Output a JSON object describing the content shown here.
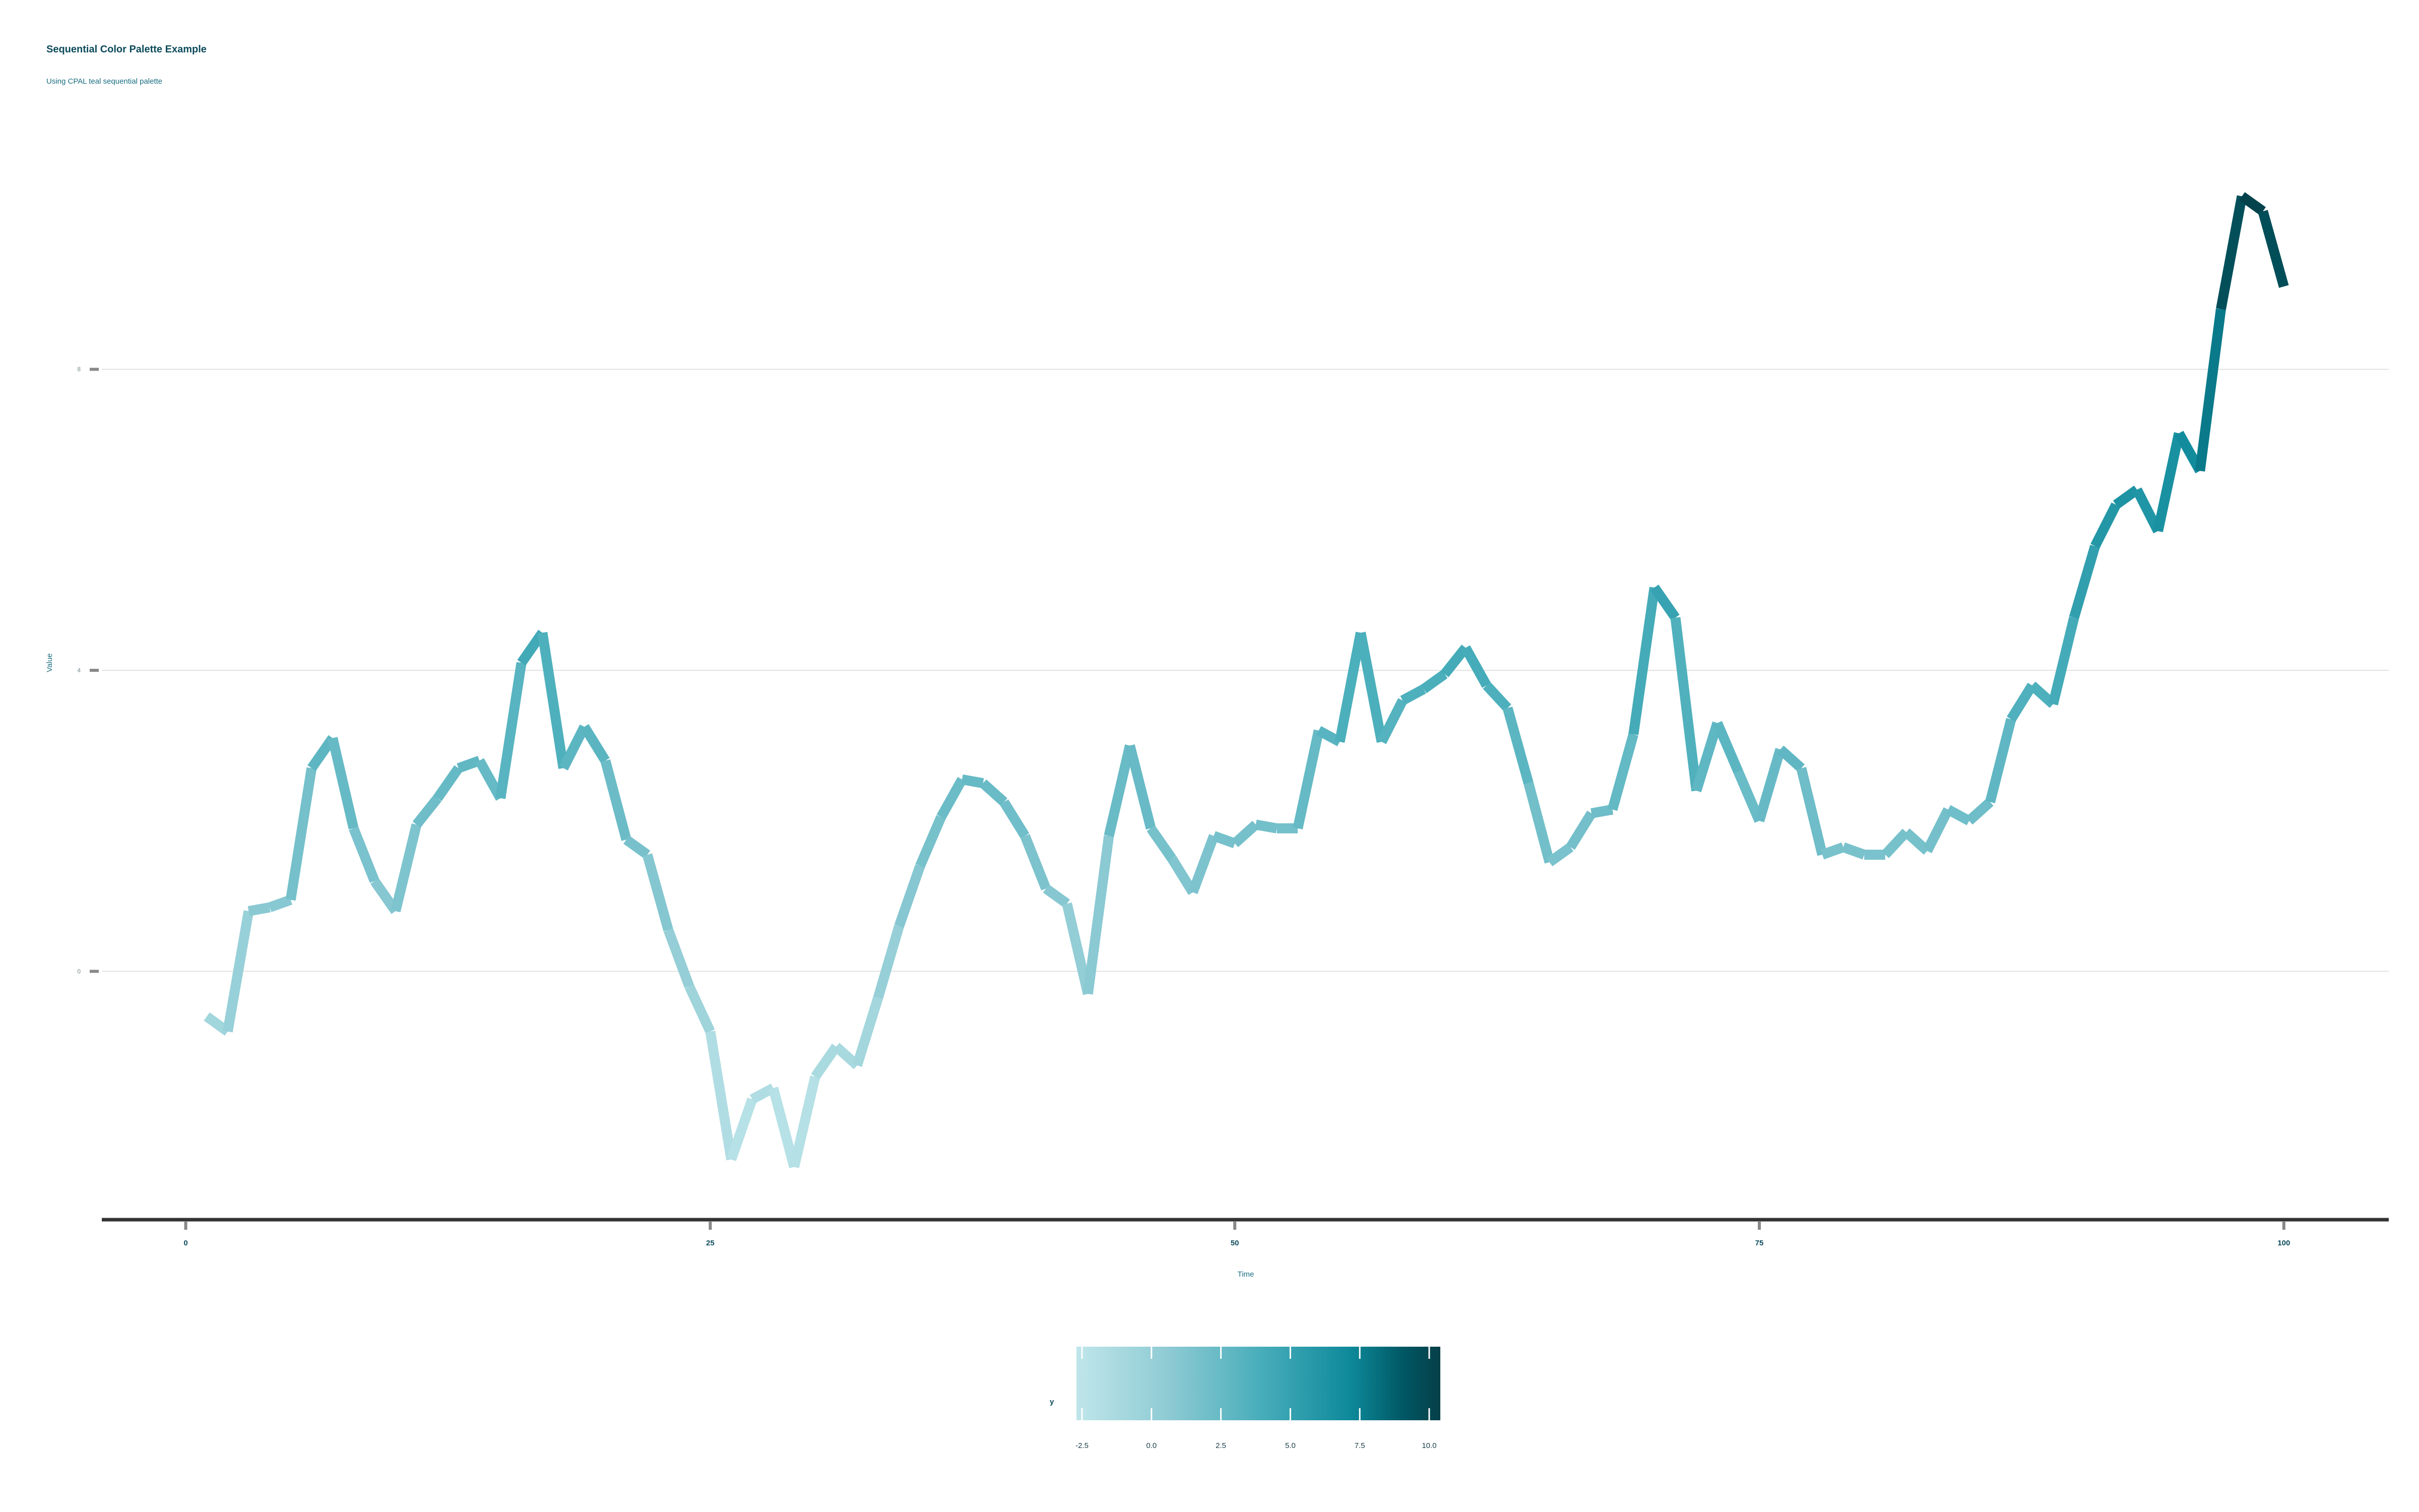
{
  "chart_data": {
    "type": "line",
    "title": "Sequential Color Palette Example",
    "subtitle": "Using CPAL teal sequential palette",
    "xlabel": "Time",
    "ylabel": "Value",
    "xlim": [
      -4,
      105
    ],
    "ylim": [
      -3.3,
      11.3
    ],
    "x_ticks": [
      0,
      25,
      50,
      75,
      100
    ],
    "y_ticks": [
      0,
      4,
      8
    ],
    "grid": true,
    "legend": {
      "title": "y",
      "position": "bottom",
      "range": [
        -2.7,
        10.4
      ],
      "ticks": [
        -2.5,
        0.0,
        2.5,
        5.0,
        7.5,
        10.0
      ],
      "tick_labels": [
        "-2.5",
        "0.0",
        "2.5",
        "5.0",
        "7.5",
        "10.0"
      ]
    },
    "palette": [
      "#bfe6ea",
      "#8fcbd4",
      "#4aaebb",
      "#0e8a9b",
      "#005763",
      "#063f48"
    ],
    "x": [
      1,
      2,
      3,
      4,
      5,
      6,
      7,
      8,
      9,
      10,
      11,
      12,
      13,
      14,
      15,
      16,
      17,
      18,
      19,
      20,
      21,
      22,
      23,
      24,
      25,
      26,
      27,
      28,
      29,
      30,
      31,
      32,
      33,
      34,
      35,
      36,
      37,
      38,
      39,
      40,
      41,
      42,
      43,
      44,
      45,
      46,
      47,
      48,
      49,
      50,
      51,
      52,
      53,
      54,
      55,
      56,
      57,
      58,
      59,
      60,
      61,
      62,
      63,
      64,
      65,
      66,
      67,
      68,
      69,
      70,
      71,
      72,
      73,
      74,
      75,
      76,
      77,
      78,
      79,
      80,
      81,
      82,
      83,
      84,
      85,
      86,
      87,
      88,
      89,
      90,
      91,
      92,
      93,
      94,
      95,
      96,
      97,
      98,
      99,
      100
    ],
    "y": [
      -0.6,
      -0.8,
      0.8,
      0.85,
      0.95,
      2.7,
      3.1,
      1.9,
      1.2,
      0.8,
      1.95,
      2.3,
      2.7,
      2.8,
      2.3,
      4.1,
      4.5,
      2.7,
      3.25,
      2.8,
      1.75,
      1.55,
      0.55,
      -0.2,
      -0.8,
      -2.5,
      -1.7,
      -1.55,
      -2.6,
      -1.4,
      -1.0,
      -1.25,
      -0.35,
      0.6,
      1.4,
      2.05,
      2.55,
      2.5,
      2.25,
      1.8,
      1.1,
      0.9,
      -0.3,
      1.8,
      3.0,
      1.9,
      1.5,
      1.05,
      1.8,
      1.7,
      1.95,
      1.9,
      1.9,
      3.2,
      3.05,
      4.5,
      3.05,
      3.6,
      3.75,
      3.95,
      4.3,
      3.8,
      3.5,
      2.5,
      1.45,
      1.65,
      2.1,
      2.15,
      3.15,
      5.1,
      4.7,
      2.4,
      3.3,
      2.65,
      2.0,
      2.95,
      2.7,
      1.55,
      1.65,
      1.55,
      1.55,
      1.85,
      1.6,
      2.15,
      2.0,
      2.25,
      3.35,
      3.8,
      3.55,
      4.7,
      5.65,
      6.2,
      6.4,
      5.85,
      7.15,
      6.65,
      8.8,
      10.3,
      10.1,
      9.1
    ]
  }
}
